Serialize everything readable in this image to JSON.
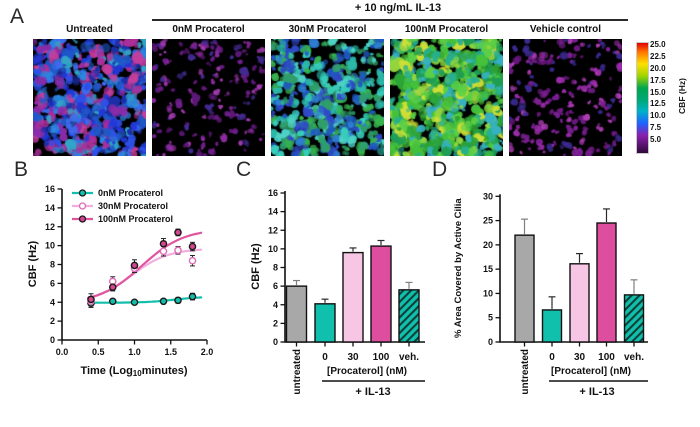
{
  "panel_labels": {
    "a": "A",
    "b": "B",
    "c": "C",
    "d": "D"
  },
  "panel_a": {
    "treatment_header": "+ 10 ng/mL IL-13",
    "columns": [
      {
        "label": "Untreated",
        "blob_count": 430,
        "r_min": 1.6,
        "r_max": 5.2,
        "seed": 11,
        "blob_colors": [
          "#2238d8",
          "#2c50e8",
          "#1b2fa8",
          "#3b6cee",
          "#1f58c8",
          "#aa2f9a",
          "#c43e9c",
          "#8a2ba8",
          "#33a4c8",
          "#2b86e0"
        ]
      },
      {
        "label": "0nM Procaterol",
        "blob_count": 150,
        "r_min": 1.2,
        "r_max": 3.2,
        "seed": 23,
        "blob_colors": [
          "#711f8e",
          "#8e2aa4",
          "#5c1878",
          "#a13aae",
          "#432a92"
        ]
      },
      {
        "label": "30nM Procaterol",
        "blob_count": 400,
        "r_min": 1.6,
        "r_max": 4.8,
        "seed": 37,
        "blob_colors": [
          "#2bb8a8",
          "#38cdbb",
          "#2f9e6a",
          "#36b24c",
          "#2e7ed2",
          "#2057c0",
          "#4ed2c6",
          "#2f49c8"
        ]
      },
      {
        "label": "100nM Procaterol",
        "blob_count": 520,
        "r_min": 1.8,
        "r_max": 5.5,
        "seed": 51,
        "blob_colors": [
          "#2da434",
          "#45c13a",
          "#5ccf45",
          "#27b08f",
          "#93d63c",
          "#cede35",
          "#36b2c2",
          "#1f9e53"
        ]
      },
      {
        "label": "Vehicle control",
        "blob_count": 170,
        "r_min": 1.3,
        "r_max": 3.6,
        "seed": 67,
        "blob_colors": [
          "#7c2094",
          "#9a2caa",
          "#6a1880",
          "#ab3cb2",
          "#3b2a90"
        ]
      }
    ],
    "colorbar": {
      "label": "CBF (Hz)",
      "ticks": [
        "25.0",
        "22.5",
        "20.0",
        "17.5",
        "15.0",
        "12.5",
        "10.0",
        "7.5",
        "5.0"
      ],
      "gradient": [
        "#e00000",
        "#ff7300",
        "#ffdf00",
        "#9fd400",
        "#00a550",
        "#00a878",
        "#00b2c8",
        "#1f62ff",
        "#8a1fae",
        "#30093a"
      ]
    }
  },
  "colors": {
    "teal": "#10c0ac",
    "pink_light": "#f7c6e5",
    "magenta": "#dd4f9e",
    "gray": "#a8a8a8",
    "hatch_line": "#0e3f39"
  },
  "chart_data": [
    {
      "panel": "B",
      "type": "line",
      "ylabel": "CBF (Hz)",
      "xlabel": "Time (Log10minutes)",
      "xlabel_base": "Time (Log",
      "xlabel_subscript": "10",
      "xlabel_rest": "minutes)",
      "xlim": [
        0,
        2
      ],
      "ylim": [
        0,
        16
      ],
      "xticks": [
        "0.0",
        "0.5",
        "1.0",
        "1.5",
        "2.0"
      ],
      "yticks": [
        0,
        2,
        4,
        6,
        8,
        10,
        12,
        14,
        16
      ],
      "x": [
        0.4,
        0.7,
        1.0,
        1.4,
        1.6,
        1.8
      ],
      "series": [
        {
          "name": "0nM Procaterol",
          "line_color": "#10c0ac",
          "marker_fill": "#10c0ac",
          "marker_stroke": "#1a1a1a",
          "values": [
            3.9,
            4.1,
            4.0,
            4.1,
            4.2,
            4.6
          ],
          "errors": [
            0.45,
            0.25,
            0.2,
            0.25,
            0.3,
            0.35
          ],
          "fit": {
            "bottom": 3.95,
            "top": 4.6,
            "ec50": 1.55,
            "hill": 2.2
          }
        },
        {
          "name": "30nM Procaterol",
          "line_color": "#f2aede",
          "marker_fill": "#ffffff",
          "marker_stroke": "#df6cb8",
          "values": [
            4.1,
            6.2,
            7.6,
            9.4,
            9.5,
            8.4
          ],
          "errors": [
            0.5,
            0.5,
            0.45,
            0.5,
            0.4,
            0.55
          ],
          "fit": {
            "bottom": 3.9,
            "top": 9.7,
            "ec50": 0.95,
            "hill": 1.7
          }
        },
        {
          "name": "100nM Procaterol",
          "line_color": "#e0559f",
          "marker_fill": "#d4468f",
          "marker_stroke": "#1a1a1a",
          "values": [
            4.3,
            5.6,
            7.9,
            10.2,
            11.4,
            9.9
          ],
          "errors": [
            0.6,
            0.4,
            0.6,
            0.55,
            0.35,
            0.45
          ],
          "fit": {
            "bottom": 3.9,
            "top": 11.8,
            "ec50": 1.1,
            "hill": 1.5
          }
        }
      ],
      "legend_position": "top-left"
    },
    {
      "panel": "C",
      "type": "bar",
      "ylabel": "CBF (Hz)",
      "ylim": [
        0,
        16
      ],
      "yticks": [
        0,
        2,
        4,
        6,
        8,
        10,
        12,
        14,
        16
      ],
      "categories": [
        "untreated",
        "0",
        "30",
        "100",
        "veh."
      ],
      "rotate_labels": [
        true,
        false,
        false,
        false,
        false
      ],
      "values": [
        6.0,
        4.1,
        9.6,
        10.3,
        5.6
      ],
      "errors": [
        0.6,
        0.5,
        0.5,
        0.6,
        0.8
      ],
      "bar_colors": [
        "#a8a8a8",
        "#10c0ac",
        "#f7c6e5",
        "#dd4f9e",
        "#10c0ac"
      ],
      "error_colors": [
        "#7f7f7f",
        "#2a2a2a",
        "#2a2a2a",
        "#2a2a2a",
        "#7f7f7f"
      ],
      "hatched": [
        false,
        false,
        false,
        false,
        true
      ],
      "xlabel_group": "[Procaterol] (nM)",
      "group_annotation": "+ IL-13"
    },
    {
      "panel": "D",
      "type": "bar",
      "ylabel": "% Area Covered by Active Cilia",
      "ylim": [
        0,
        30
      ],
      "yticks": [
        0,
        5,
        10,
        15,
        20,
        25,
        30
      ],
      "categories": [
        "untreated",
        "0",
        "30",
        "100",
        "veh."
      ],
      "rotate_labels": [
        true,
        false,
        false,
        false,
        false
      ],
      "values": [
        22.0,
        6.6,
        16.1,
        24.5,
        9.7
      ],
      "errors": [
        3.3,
        2.7,
        2.1,
        2.9,
        3.1
      ],
      "bar_colors": [
        "#a8a8a8",
        "#10c0ac",
        "#f7c6e5",
        "#dd4f9e",
        "#10c0ac"
      ],
      "error_colors": [
        "#7f7f7f",
        "#2a2a2a",
        "#2a2a2a",
        "#2a2a2a",
        "#7f7f7f"
      ],
      "hatched": [
        false,
        false,
        false,
        false,
        true
      ],
      "xlabel_group": "[Procaterol] (nM)",
      "group_annotation": "+ IL-13"
    }
  ]
}
